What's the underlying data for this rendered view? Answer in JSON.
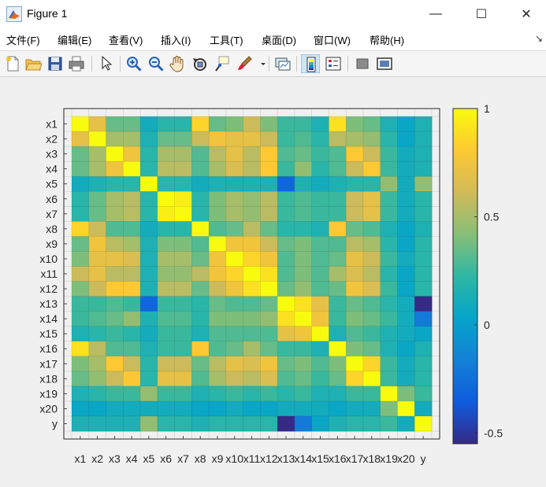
{
  "window": {
    "title": "Figure 1",
    "minimize_glyph": "—",
    "maximize_glyph": "☐",
    "close_glyph": "✕"
  },
  "menu": [
    {
      "label": "文件(F)"
    },
    {
      "label": "编辑(E)"
    },
    {
      "label": "查看(V)"
    },
    {
      "label": "插入(I)"
    },
    {
      "label": "工具(T)"
    },
    {
      "label": "桌面(D)"
    },
    {
      "label": "窗口(W)"
    },
    {
      "label": "帮助(H)"
    }
  ],
  "toolbar": {
    "icons": [
      "new-figure-icon",
      "open-file-icon",
      "save-icon",
      "print-icon",
      "select-arrow-icon",
      "zoom-in-icon",
      "zoom-out-icon",
      "pan-hand-icon",
      "rotate-3d-icon",
      "data-cursor-icon",
      "brush-icon",
      "brush-dropdown-icon",
      "link-plot-icon",
      "colorbar-icon",
      "legend-icon",
      "hide-plot-tools-icon",
      "show-plot-tools-icon"
    ]
  },
  "colors": {
    "parula": [
      "#352a87",
      "#0f5cdd",
      "#1481d6",
      "#06a4ca",
      "#2eb7a4",
      "#87bf77",
      "#d1bb59",
      "#fec832",
      "#f9fb0e"
    ]
  },
  "chart_data": {
    "type": "heatmap",
    "title": "",
    "variables": [
      "x1",
      "x2",
      "x3",
      "x4",
      "x5",
      "x6",
      "x7",
      "x8",
      "x9",
      "x10",
      "x11",
      "x12",
      "x13",
      "x14",
      "x15",
      "x16",
      "x17",
      "x18",
      "x19",
      "x20",
      "y"
    ],
    "row_labels": [
      "x1",
      "x2",
      "x3",
      "x4",
      "x5",
      "x6",
      "x7",
      "x8",
      "x9",
      "x10",
      "x11",
      "x12",
      "x13",
      "x14",
      "x15",
      "x16",
      "x17",
      "x18",
      "x19",
      "x20",
      "y"
    ],
    "col_labels": [
      "x1",
      "x2",
      "x3",
      "x4",
      "x5",
      "x6",
      "x7",
      "x8",
      "x9",
      "x10",
      "x11",
      "x12",
      "x13",
      "x14",
      "x15",
      "x16",
      "x17",
      "x18",
      "x19",
      "x20",
      "y"
    ],
    "values": [
      [
        1.0,
        0.7,
        0.35,
        0.35,
        0.1,
        0.2,
        0.2,
        0.85,
        0.35,
        0.4,
        0.6,
        0.4,
        0.25,
        0.25,
        0.15,
        0.9,
        0.4,
        0.35,
        0.15,
        0.05,
        0.15
      ],
      [
        0.7,
        1.0,
        0.5,
        0.5,
        0.15,
        0.35,
        0.35,
        0.6,
        0.75,
        0.7,
        0.7,
        0.6,
        0.25,
        0.3,
        0.2,
        0.55,
        0.5,
        0.45,
        0.2,
        0.05,
        0.15
      ],
      [
        0.35,
        0.5,
        1.0,
        0.75,
        0.2,
        0.5,
        0.5,
        0.3,
        0.55,
        0.7,
        0.55,
        0.8,
        0.3,
        0.35,
        0.25,
        0.3,
        0.8,
        0.6,
        0.25,
        0.1,
        0.15
      ],
      [
        0.35,
        0.5,
        0.75,
        1.0,
        0.2,
        0.55,
        0.55,
        0.3,
        0.5,
        0.65,
        0.55,
        0.8,
        0.25,
        0.45,
        0.2,
        0.3,
        0.6,
        0.8,
        0.25,
        0.1,
        0.15
      ],
      [
        0.1,
        0.15,
        0.2,
        0.2,
        1.0,
        0.2,
        0.2,
        0.1,
        0.15,
        0.15,
        0.15,
        0.15,
        -0.3,
        0.15,
        0.1,
        0.15,
        0.2,
        0.2,
        0.45,
        0.1,
        0.45
      ],
      [
        0.2,
        0.35,
        0.5,
        0.55,
        0.2,
        1.0,
        0.95,
        0.2,
        0.4,
        0.5,
        0.45,
        0.55,
        0.25,
        0.3,
        0.25,
        0.25,
        0.6,
        0.7,
        0.25,
        0.1,
        0.2
      ],
      [
        0.2,
        0.35,
        0.5,
        0.55,
        0.2,
        0.95,
        1.0,
        0.2,
        0.4,
        0.5,
        0.45,
        0.55,
        0.25,
        0.3,
        0.25,
        0.25,
        0.6,
        0.7,
        0.25,
        0.1,
        0.2
      ],
      [
        0.85,
        0.6,
        0.3,
        0.3,
        0.1,
        0.2,
        0.2,
        1.0,
        0.3,
        0.35,
        0.55,
        0.35,
        0.2,
        0.2,
        0.15,
        0.8,
        0.35,
        0.3,
        0.15,
        0.05,
        0.15
      ],
      [
        0.35,
        0.75,
        0.55,
        0.5,
        0.15,
        0.4,
        0.4,
        0.3,
        1.0,
        0.75,
        0.75,
        0.6,
        0.35,
        0.4,
        0.3,
        0.3,
        0.55,
        0.5,
        0.2,
        0.05,
        0.2
      ],
      [
        0.4,
        0.7,
        0.7,
        0.65,
        0.15,
        0.5,
        0.5,
        0.35,
        0.75,
        1.0,
        0.85,
        0.75,
        0.3,
        0.4,
        0.3,
        0.35,
        0.7,
        0.6,
        0.25,
        0.1,
        0.2
      ],
      [
        0.6,
        0.7,
        0.55,
        0.55,
        0.15,
        0.45,
        0.45,
        0.55,
        0.75,
        0.85,
        1.0,
        0.9,
        0.3,
        0.4,
        0.3,
        0.5,
        0.65,
        0.55,
        0.2,
        0.05,
        0.2
      ],
      [
        0.4,
        0.6,
        0.8,
        0.8,
        0.15,
        0.55,
        0.55,
        0.35,
        0.6,
        0.75,
        0.9,
        1.0,
        0.35,
        0.45,
        0.3,
        0.35,
        0.75,
        0.65,
        0.25,
        0.05,
        0.2
      ],
      [
        0.25,
        0.25,
        0.3,
        0.25,
        -0.3,
        0.25,
        0.25,
        0.2,
        0.35,
        0.3,
        0.3,
        0.35,
        1.0,
        0.9,
        0.7,
        0.25,
        0.35,
        0.3,
        0.2,
        0.1,
        -0.55
      ],
      [
        0.25,
        0.3,
        0.35,
        0.45,
        0.15,
        0.3,
        0.3,
        0.2,
        0.4,
        0.4,
        0.4,
        0.45,
        0.9,
        1.0,
        0.75,
        0.25,
        0.4,
        0.35,
        0.25,
        0.1,
        -0.2
      ],
      [
        0.15,
        0.2,
        0.25,
        0.2,
        0.1,
        0.25,
        0.25,
        0.15,
        0.3,
        0.3,
        0.3,
        0.3,
        0.7,
        0.75,
        1.0,
        0.15,
        0.3,
        0.25,
        0.15,
        0.1,
        0.05
      ],
      [
        0.9,
        0.55,
        0.3,
        0.3,
        0.15,
        0.25,
        0.25,
        0.8,
        0.3,
        0.35,
        0.5,
        0.35,
        0.25,
        0.25,
        0.15,
        1.0,
        0.4,
        0.35,
        0.15,
        0.05,
        0.15
      ],
      [
        0.4,
        0.5,
        0.8,
        0.6,
        0.2,
        0.6,
        0.6,
        0.35,
        0.55,
        0.7,
        0.65,
        0.75,
        0.35,
        0.4,
        0.3,
        0.4,
        1.0,
        0.85,
        0.25,
        0.1,
        0.2
      ],
      [
        0.35,
        0.45,
        0.6,
        0.8,
        0.2,
        0.7,
        0.7,
        0.3,
        0.5,
        0.6,
        0.55,
        0.65,
        0.3,
        0.35,
        0.25,
        0.35,
        0.85,
        1.0,
        0.25,
        0.1,
        0.2
      ],
      [
        0.15,
        0.2,
        0.25,
        0.25,
        0.45,
        0.25,
        0.25,
        0.15,
        0.2,
        0.25,
        0.2,
        0.25,
        0.2,
        0.25,
        0.15,
        0.15,
        0.25,
        0.25,
        1.0,
        0.4,
        0.25
      ],
      [
        0.05,
        0.05,
        0.1,
        0.1,
        0.1,
        0.1,
        0.1,
        0.05,
        0.05,
        0.1,
        0.05,
        0.05,
        0.1,
        0.1,
        0.1,
        0.05,
        0.1,
        0.1,
        0.4,
        1.0,
        0.1
      ],
      [
        0.15,
        0.15,
        0.15,
        0.15,
        0.45,
        0.2,
        0.2,
        0.15,
        0.2,
        0.2,
        0.2,
        0.2,
        -0.55,
        -0.2,
        0.05,
        0.15,
        0.2,
        0.2,
        0.25,
        0.1,
        1.0
      ]
    ],
    "clim": [
      -0.55,
      1.0
    ],
    "colorbar": {
      "ticks": [
        1,
        0.5,
        0,
        -0.5
      ],
      "tick_labels": [
        "1",
        "0.5",
        "0",
        "-0.5"
      ]
    },
    "grid": true,
    "colormap": "parula"
  }
}
